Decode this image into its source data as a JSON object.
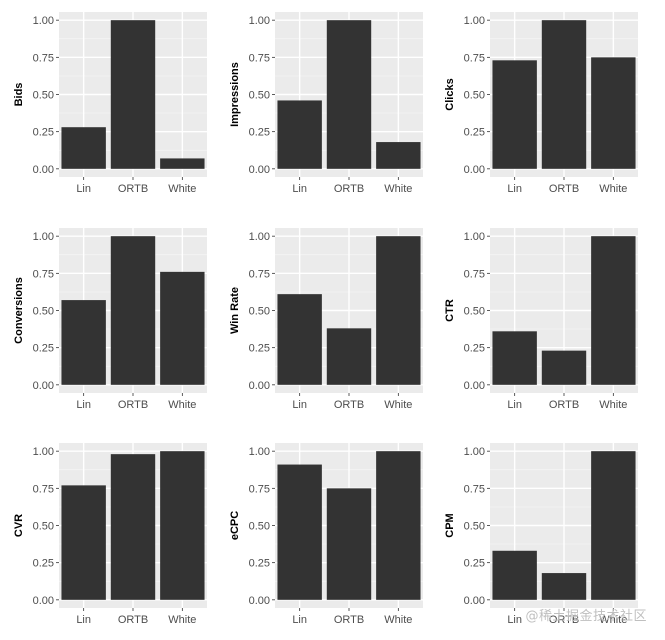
{
  "theme": {
    "panel_bg": "#ebebeb",
    "grid_major": "#ffffff",
    "bar_fill": "#333333",
    "tick_text": "#4d4d4d"
  },
  "chart_data": [
    {
      "type": "bar",
      "ylabel": "Bids",
      "categories": [
        "Lin",
        "ORTB",
        "White"
      ],
      "values": [
        0.28,
        1.0,
        0.07
      ],
      "ylim": [
        0,
        1
      ],
      "yticks": [
        "0.00",
        "0.25",
        "0.50",
        "0.75",
        "1.00"
      ]
    },
    {
      "type": "bar",
      "ylabel": "Impressions",
      "categories": [
        "Lin",
        "ORTB",
        "White"
      ],
      "values": [
        0.46,
        1.0,
        0.18
      ],
      "ylim": [
        0,
        1
      ],
      "yticks": [
        "0.00",
        "0.25",
        "0.50",
        "0.75",
        "1.00"
      ]
    },
    {
      "type": "bar",
      "ylabel": "Clicks",
      "categories": [
        "Lin",
        "ORTB",
        "White"
      ],
      "values": [
        0.73,
        1.0,
        0.75
      ],
      "ylim": [
        0,
        1
      ],
      "yticks": [
        "0.00",
        "0.25",
        "0.50",
        "0.75",
        "1.00"
      ]
    },
    {
      "type": "bar",
      "ylabel": "Conversions",
      "categories": [
        "Lin",
        "ORTB",
        "White"
      ],
      "values": [
        0.57,
        1.0,
        0.76
      ],
      "ylim": [
        0,
        1
      ],
      "yticks": [
        "0.00",
        "0.25",
        "0.50",
        "0.75",
        "1.00"
      ]
    },
    {
      "type": "bar",
      "ylabel": "Win Rate",
      "categories": [
        "Lin",
        "ORTB",
        "White"
      ],
      "values": [
        0.61,
        0.38,
        1.0
      ],
      "ylim": [
        0,
        1
      ],
      "yticks": [
        "0.00",
        "0.25",
        "0.50",
        "0.75",
        "1.00"
      ]
    },
    {
      "type": "bar",
      "ylabel": "CTR",
      "categories": [
        "Lin",
        "ORTB",
        "White"
      ],
      "values": [
        0.36,
        0.23,
        1.0
      ],
      "ylim": [
        0,
        1
      ],
      "yticks": [
        "0.00",
        "0.25",
        "0.50",
        "0.75",
        "1.00"
      ]
    },
    {
      "type": "bar",
      "ylabel": "CVR",
      "categories": [
        "Lin",
        "ORTB",
        "White"
      ],
      "values": [
        0.77,
        0.98,
        1.0
      ],
      "ylim": [
        0,
        1
      ],
      "yticks": [
        "0.00",
        "0.25",
        "0.50",
        "0.75",
        "1.00"
      ]
    },
    {
      "type": "bar",
      "ylabel": "eCPC",
      "categories": [
        "Lin",
        "ORTB",
        "White"
      ],
      "values": [
        0.91,
        0.75,
        1.0
      ],
      "ylim": [
        0,
        1
      ],
      "yticks": [
        "0.00",
        "0.25",
        "0.50",
        "0.75",
        "1.00"
      ]
    },
    {
      "type": "bar",
      "ylabel": "CPM",
      "categories": [
        "Lin",
        "ORTB",
        "White"
      ],
      "values": [
        0.33,
        0.18,
        1.0
      ],
      "ylim": [
        0,
        1
      ],
      "yticks": [
        "0.00",
        "0.25",
        "0.50",
        "0.75",
        "1.00"
      ]
    }
  ],
  "watermark": {
    "text": "@稀土掘金技术社区"
  }
}
